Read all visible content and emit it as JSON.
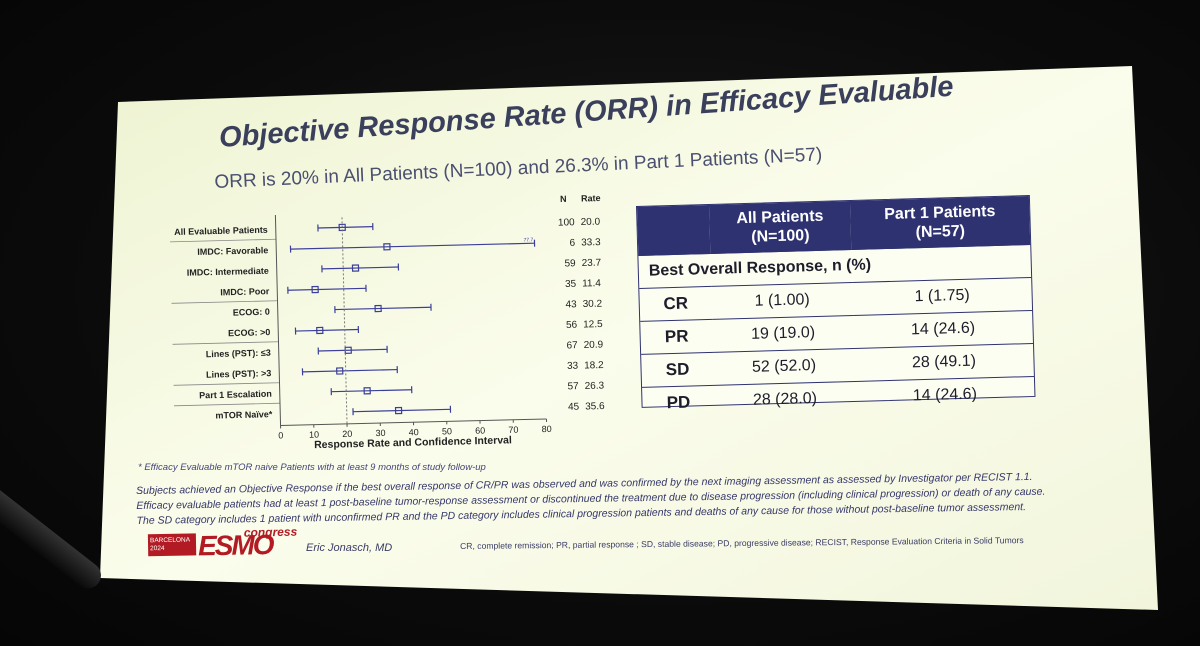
{
  "slide": {
    "title": "Objective Response Rate (ORR) in Efficacy Evaluable",
    "subtitle": "ORR is 20% in All Patients (N=100) and 26.3% in Part 1 Patients (N=57)"
  },
  "chart_data": {
    "type": "forest",
    "column_headers": {
      "n": "N",
      "rate": "Rate"
    },
    "xlabel": "Response Rate and Confidence Interval",
    "xlim": [
      0,
      80
    ],
    "xticks": [
      0,
      10,
      20,
      30,
      40,
      50,
      60,
      70,
      80
    ],
    "reference_line": 20,
    "rows": [
      {
        "label": "All Evaluable Patients",
        "n": "100",
        "rate": "20.0",
        "value": 20.0,
        "ci": [
          12.7,
          29.2
        ]
      },
      {
        "label": "IMDC: Favorable",
        "n": "6",
        "rate": "33.3",
        "value": 33.3,
        "ci": [
          4.3,
          77.7
        ],
        "note": "77.7"
      },
      {
        "label": "IMDC: Intermediate",
        "n": "59",
        "rate": "23.7",
        "value": 23.7,
        "ci": [
          13.6,
          36.6
        ]
      },
      {
        "label": "IMDC: Poor",
        "n": "35",
        "rate": "11.4",
        "value": 11.4,
        "ci": [
          3.2,
          26.7
        ]
      },
      {
        "label": "ECOG: 0",
        "n": "43",
        "rate": "30.2",
        "value": 30.2,
        "ci": [
          17.2,
          46.1
        ]
      },
      {
        "label": "ECOG: >0",
        "n": "56",
        "rate": "12.5",
        "value": 12.5,
        "ci": [
          5.2,
          24.1
        ]
      },
      {
        "label": "Lines (PST): ≤3",
        "n": "67",
        "rate": "20.9",
        "value": 20.9,
        "ci": [
          11.9,
          32.6
        ]
      },
      {
        "label": "Lines (PST): >3",
        "n": "33",
        "rate": "18.2",
        "value": 18.2,
        "ci": [
          7.0,
          35.5
        ]
      },
      {
        "label": "Part 1 Escalation",
        "n": "57",
        "rate": "26.3",
        "value": 26.3,
        "ci": [
          15.5,
          39.7
        ]
      },
      {
        "label": "mTOR Naïve*",
        "n": "45",
        "rate": "35.6",
        "value": 35.6,
        "ci": [
          21.9,
          51.2
        ]
      }
    ]
  },
  "table": {
    "headers": [
      "All Patients\n(N=100)",
      "Part 1 Patients\n(N=57)"
    ],
    "header_lines": [
      [
        "All Patients",
        "(N=100)"
      ],
      [
        "Part 1 Patients",
        "(N=57)"
      ]
    ],
    "section_label": "Best Overall Response, n (%)",
    "rows": [
      {
        "label": "CR",
        "all": "1 (1.00)",
        "part1": "1 (1.75)"
      },
      {
        "label": "PR",
        "all": "19 (19.0)",
        "part1": "14 (24.6)"
      },
      {
        "label": "SD",
        "all": "52 (52.0)",
        "part1": "28 (49.1)"
      },
      {
        "label": "PD",
        "all": "28 (28.0)",
        "part1": "14 (24.6)"
      }
    ]
  },
  "footnotes": {
    "asterisk": "* Efficacy Evaluable mTOR naive Patients with at least 9 months of study follow-up",
    "lines": [
      "Subjects achieved an Objective Response if the best overall response of CR/PR was observed and was confirmed by the next imaging assessment as assessed by Investigator per RECIST 1.1.",
      "Efficacy evaluable patients had at least 1 post-baseline tumor-response assessment or discontinued the treatment due to disease progression (including clinical progression) or death of any cause.",
      "The SD category includes 1 patient with unconfirmed PR and the PD category includes clinical progression patients and deaths of any cause for those without post-baseline tumor assessment."
    ],
    "abbreviations": "CR, complete remission; PR, partial response ; SD, stable disease; PD, progressive disease; RECIST, Response Evaluation Criteria in Solid Tumors"
  },
  "branding": {
    "city": "BARCELONA",
    "year": "2024",
    "logo": "ESMO",
    "congress": "congress",
    "presenter": "Eric Jonasch, MD"
  },
  "colors": {
    "accent": "#2e3270",
    "ci_line": "#3b3f9a",
    "title": "#3a3f5c",
    "brand_red": "#b31b24"
  }
}
